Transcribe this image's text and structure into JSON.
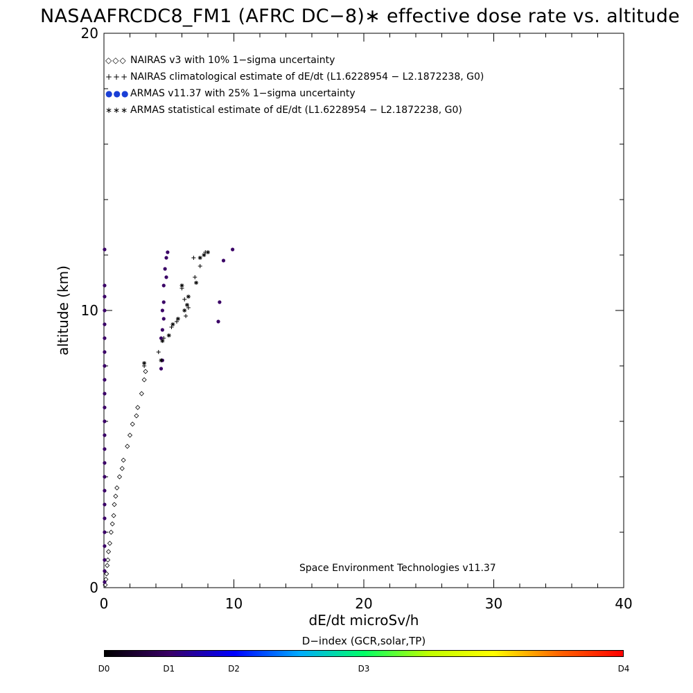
{
  "title": "NASAAFRCDC8_FM1 (AFRC DC−8)∗ effective dose rate vs. altitude",
  "legend": [
    {
      "symbol": "◇◇◇",
      "label": "NAIRAS v3 with 10% 1−sigma uncertainty",
      "color": "#000000"
    },
    {
      "symbol": "+++",
      "label": "NAIRAS climatological estimate of dE/dt (L1.6228954 − L2.1872238, G0)",
      "color": "#000000"
    },
    {
      "symbol": "●●●",
      "label": "ARMAS v11.37 with 25% 1−sigma uncertainty",
      "color": "#1a3fd6"
    },
    {
      "symbol": "∗∗∗",
      "label": "ARMAS statistical estimate of dE/dt (L1.6228954 − L2.1872238, G0)",
      "color": "#000000"
    }
  ],
  "footer_note": "Space Environment Technologies v11.37",
  "colorbar": {
    "title": "D−index (GCR,solar,TP)",
    "labels": [
      {
        "text": "D0",
        "frac": 0.0
      },
      {
        "text": "D1",
        "frac": 0.125
      },
      {
        "text": "D2",
        "frac": 0.25
      },
      {
        "text": "D3",
        "frac": 0.5
      },
      {
        "text": "D4",
        "frac": 1.0
      }
    ],
    "stops": [
      "#000000",
      "#3a0066",
      "#0000ff",
      "#00aaff",
      "#00ff66",
      "#bfff00",
      "#ffff00",
      "#ff6600",
      "#ff0000"
    ]
  },
  "chart_data": {
    "type": "scatter",
    "title": "NASAAFRCDC8_FM1 (AFRC DC−8)∗ effective dose rate vs. altitude",
    "xlabel": "dE/dt microSv/h",
    "ylabel": "altitude (km)",
    "xlim": [
      0,
      40
    ],
    "ylim": [
      0,
      20
    ],
    "x_ticks": [
      0,
      10,
      20,
      30,
      40
    ],
    "y_ticks": [
      0,
      10,
      20
    ],
    "grid": false,
    "legend_position": "top-left",
    "series": [
      {
        "name": "NAIRAS v3 with 10% 1−sigma uncertainty",
        "marker": "diamond",
        "color": "#000000",
        "points": [
          [
            0.1,
            0.1
          ],
          [
            0.15,
            0.3
          ],
          [
            0.2,
            0.5
          ],
          [
            0.25,
            0.8
          ],
          [
            0.3,
            1.0
          ],
          [
            0.35,
            1.3
          ],
          [
            0.45,
            1.6
          ],
          [
            0.55,
            2.0
          ],
          [
            0.65,
            2.3
          ],
          [
            0.75,
            2.6
          ],
          [
            0.8,
            3.0
          ],
          [
            0.9,
            3.3
          ],
          [
            1.0,
            3.6
          ],
          [
            1.2,
            4.0
          ],
          [
            1.4,
            4.3
          ],
          [
            1.5,
            4.6
          ],
          [
            1.8,
            5.1
          ],
          [
            2.0,
            5.5
          ],
          [
            2.2,
            5.9
          ],
          [
            2.5,
            6.2
          ],
          [
            2.6,
            6.5
          ],
          [
            2.9,
            7.0
          ],
          [
            3.1,
            7.5
          ],
          [
            3.2,
            7.8
          ]
        ]
      },
      {
        "name": "NAIRAS climatological estimate of dE/dt (L1.6228954 − L2.1872238, G0)",
        "marker": "plus",
        "color": "#000000",
        "points": [
          [
            3.1,
            8.0
          ],
          [
            4.2,
            8.5
          ],
          [
            4.6,
            9.0
          ],
          [
            5.2,
            9.4
          ],
          [
            5.6,
            9.6
          ],
          [
            6.3,
            9.8
          ],
          [
            6.5,
            10.1
          ],
          [
            6.2,
            10.4
          ],
          [
            6.0,
            10.8
          ],
          [
            7.0,
            11.2
          ],
          [
            7.4,
            11.6
          ],
          [
            6.9,
            11.9
          ],
          [
            7.8,
            12.1
          ]
        ]
      },
      {
        "name": "ARMAS v11.37 with 25% 1−sigma uncertainty",
        "marker": "filled-circle",
        "color": "#3a0066",
        "points": [
          [
            0.05,
            0.2
          ],
          [
            0.05,
            0.6
          ],
          [
            0.05,
            1.0
          ],
          [
            0.05,
            1.5
          ],
          [
            0.05,
            2.0
          ],
          [
            0.05,
            2.5
          ],
          [
            0.05,
            3.0
          ],
          [
            0.05,
            3.5
          ],
          [
            0.05,
            4.0
          ],
          [
            0.05,
            4.5
          ],
          [
            0.05,
            5.0
          ],
          [
            0.05,
            5.5
          ],
          [
            0.05,
            6.0
          ],
          [
            0.05,
            6.5
          ],
          [
            0.05,
            7.0
          ],
          [
            0.05,
            7.5
          ],
          [
            0.05,
            8.0
          ],
          [
            0.05,
            8.5
          ],
          [
            0.05,
            9.0
          ],
          [
            0.05,
            9.5
          ],
          [
            0.05,
            10.0
          ],
          [
            0.05,
            10.5
          ],
          [
            0.05,
            10.9
          ],
          [
            0.05,
            12.2
          ],
          [
            4.4,
            7.9
          ],
          [
            4.5,
            8.2
          ],
          [
            4.4,
            9.0
          ],
          [
            4.5,
            9.3
          ],
          [
            4.6,
            9.7
          ],
          [
            4.5,
            10.0
          ],
          [
            4.6,
            10.3
          ],
          [
            4.6,
            10.9
          ],
          [
            4.8,
            11.2
          ],
          [
            4.7,
            11.5
          ],
          [
            4.8,
            11.9
          ],
          [
            4.9,
            12.1
          ],
          [
            8.8,
            9.6
          ],
          [
            8.9,
            10.3
          ],
          [
            9.2,
            11.8
          ],
          [
            9.9,
            12.2
          ]
        ]
      },
      {
        "name": "ARMAS statistical estimate of dE/dt (L1.6228954 − L2.1872238, G0)",
        "marker": "asterisk",
        "color": "#000000",
        "points": [
          [
            3.1,
            8.1
          ],
          [
            4.4,
            8.2
          ],
          [
            4.5,
            8.9
          ],
          [
            5.0,
            9.1
          ],
          [
            5.3,
            9.5
          ],
          [
            5.7,
            9.7
          ],
          [
            6.2,
            10.0
          ],
          [
            6.4,
            10.2
          ],
          [
            6.5,
            10.5
          ],
          [
            6.0,
            10.9
          ],
          [
            7.1,
            11.0
          ],
          [
            7.4,
            11.9
          ],
          [
            7.7,
            12.0
          ],
          [
            8.0,
            12.1
          ]
        ]
      }
    ],
    "annotations": [
      "Space Environment Technologies v11.37"
    ]
  }
}
